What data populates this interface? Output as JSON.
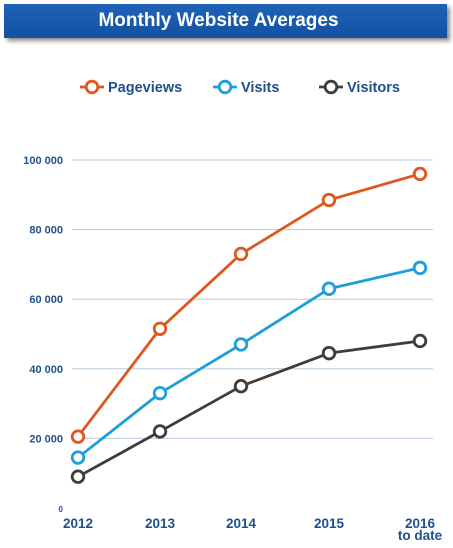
{
  "title": "Monthly Website Averages",
  "colors": {
    "title_bg": "#1a5cb0",
    "title_text": "#ffffff",
    "axis_text": "#1f4f8c",
    "grid": "#b9cbe0"
  },
  "chart_data": {
    "type": "line",
    "title": "Monthly Website Averages",
    "x": [
      "2012",
      "2013",
      "2014",
      "2015",
      "2016"
    ],
    "x_tick_labels": [
      {
        "lines": [
          "2012"
        ]
      },
      {
        "lines": [
          "2013"
        ]
      },
      {
        "lines": [
          "2014"
        ]
      },
      {
        "lines": [
          "2015"
        ]
      },
      {
        "lines": [
          "2016",
          "to date"
        ]
      }
    ],
    "y_ticks": [
      0,
      20000,
      40000,
      60000,
      80000,
      100000
    ],
    "y_tick_labels": [
      "0",
      "20 000",
      "40 000",
      "60 000",
      "80 000",
      "100 000"
    ],
    "ylim": [
      0,
      100000
    ],
    "grid": true,
    "legend_position": "top",
    "series": [
      {
        "name": "Pageviews",
        "color": "#e0561f",
        "values": [
          20500,
          51500,
          73000,
          88500,
          96000
        ]
      },
      {
        "name": "Visits",
        "color": "#1e9fd9",
        "values": [
          14500,
          33000,
          47000,
          63000,
          69000
        ]
      },
      {
        "name": "Visitors",
        "color": "#3d3d3d",
        "values": [
          9000,
          22000,
          35000,
          44500,
          48000
        ]
      }
    ]
  }
}
